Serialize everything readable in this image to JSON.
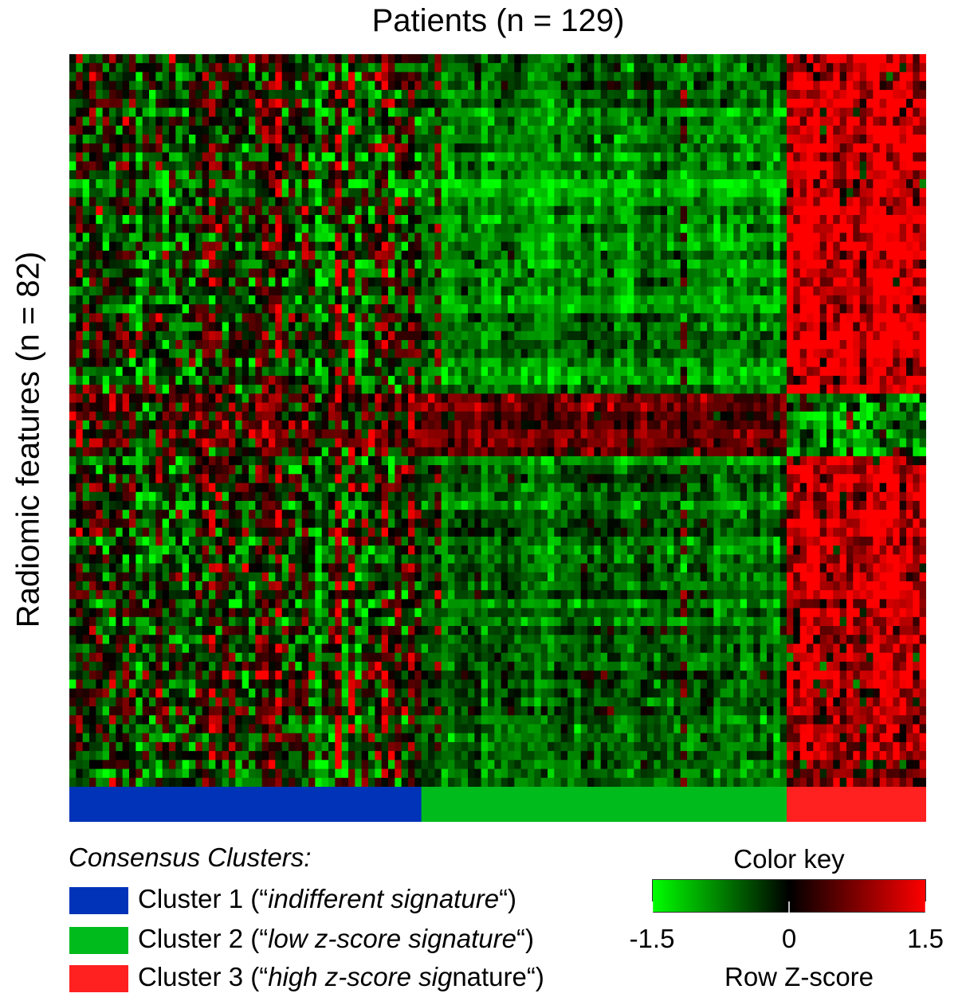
{
  "chart_data": {
    "type": "heatmap",
    "title": "Patients (n = 129)",
    "ylabel": "Radiomic features (n = 82)",
    "n_patients": 129,
    "n_features": 82,
    "colorscale": [
      "#00ff00",
      "#000000",
      "#ff0000"
    ],
    "zlim": [
      -1.5,
      1.5
    ],
    "clusters": [
      {
        "name": "Cluster 1",
        "prefix": "Cluster 1 (“",
        "signature": "indifferent signature",
        "suffix": "“)",
        "color": "#0033b8",
        "patients": 53
      },
      {
        "name": "Cluster 2",
        "prefix": "Cluster 2 (“",
        "signature": "low z-score signature",
        "suffix": "“)",
        "color": "#00bb1c",
        "patients": 55
      },
      {
        "name": "Cluster 3",
        "prefix": "Cluster 3 (“",
        "signature": "high z-score sig",
        "signature2": "nature",
        "suffix": "“)",
        "color": "#ff2020",
        "patients": 21
      }
    ],
    "legend_title": "Consensus Clusters:",
    "color_key": {
      "title": "Color key",
      "label": "Row Z-score",
      "ticks": [
        "-1.5",
        "0",
        "1.5"
      ],
      "tick_values": [
        -1.5,
        0,
        1.5
      ]
    }
  }
}
